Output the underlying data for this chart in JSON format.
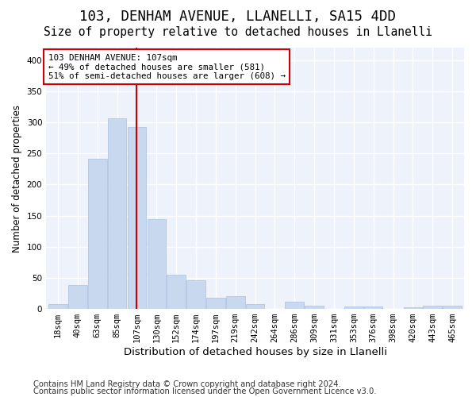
{
  "title_line1": "103, DENHAM AVENUE, LLANELLI, SA15 4DD",
  "title_line2": "Size of property relative to detached houses in Llanelli",
  "xlabel": "Distribution of detached houses by size in Llanelli",
  "ylabel": "Number of detached properties",
  "footer_line1": "Contains HM Land Registry data © Crown copyright and database right 2024.",
  "footer_line2": "Contains public sector information licensed under the Open Government Licence v3.0.",
  "bar_labels": [
    "18sqm",
    "40sqm",
    "63sqm",
    "85sqm",
    "107sqm",
    "130sqm",
    "152sqm",
    "174sqm",
    "197sqm",
    "219sqm",
    "242sqm",
    "264sqm",
    "286sqm",
    "309sqm",
    "331sqm",
    "353sqm",
    "376sqm",
    "398sqm",
    "420sqm",
    "443sqm",
    "465sqm"
  ],
  "bar_values": [
    8,
    39,
    241,
    306,
    293,
    144,
    55,
    46,
    18,
    20,
    8,
    0,
    11,
    5,
    0,
    4,
    4,
    0,
    3,
    5,
    5
  ],
  "bar_color": "#c8d8ee",
  "bar_edgecolor": "#a8c0e0",
  "vline_x": 4,
  "vline_color": "#cc0000",
  "annotation_text": "103 DENHAM AVENUE: 107sqm\n← 49% of detached houses are smaller (581)\n51% of semi-detached houses are larger (608) →",
  "annotation_box_edgecolor": "#cc0000",
  "annotation_box_facecolor": "#ffffff",
  "ylim": [
    0,
    420
  ],
  "yticks": [
    0,
    50,
    100,
    150,
    200,
    250,
    300,
    350,
    400
  ],
  "background_color": "#eef2fb",
  "grid_color": "#ffffff",
  "title1_fontsize": 12.5,
  "title2_fontsize": 10.5,
  "xlabel_fontsize": 9.5,
  "ylabel_fontsize": 8.5,
  "tick_fontsize": 7.5,
  "footer_fontsize": 7.2
}
